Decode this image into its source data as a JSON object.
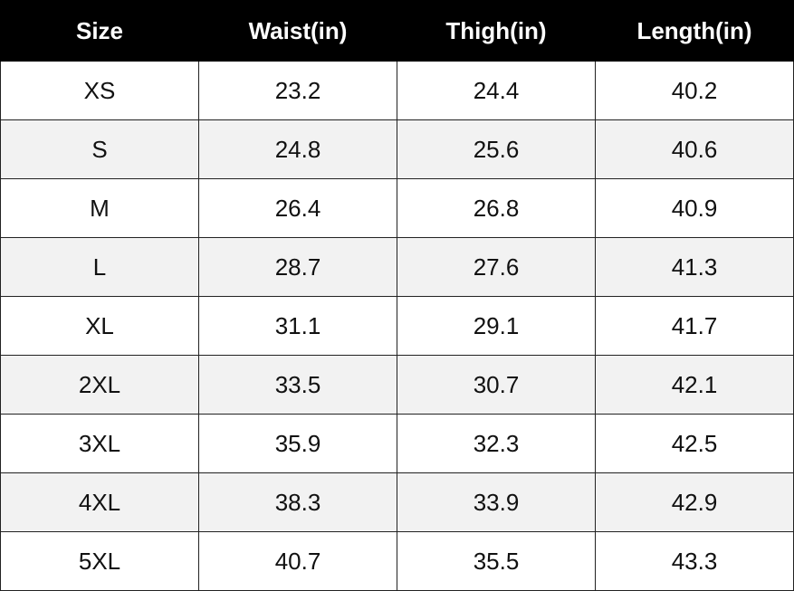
{
  "table": {
    "header": [
      "Size",
      "Waist(in)",
      "Thigh(in)",
      "Length(in)"
    ],
    "rows": [
      [
        "XS",
        "23.2",
        "24.4",
        "40.2"
      ],
      [
        "S",
        "24.8",
        "25.6",
        "40.6"
      ],
      [
        "M",
        "26.4",
        "26.8",
        "40.9"
      ],
      [
        "L",
        "28.7",
        "27.6",
        "41.3"
      ],
      [
        "XL",
        "31.1",
        "29.1",
        "41.7"
      ],
      [
        "2XL",
        "33.5",
        "30.7",
        "42.1"
      ],
      [
        "3XL",
        "35.9",
        "32.3",
        "42.5"
      ],
      [
        "4XL",
        "38.3",
        "33.9",
        "42.9"
      ],
      [
        "5XL",
        "40.7",
        "35.5",
        "43.3"
      ]
    ]
  }
}
